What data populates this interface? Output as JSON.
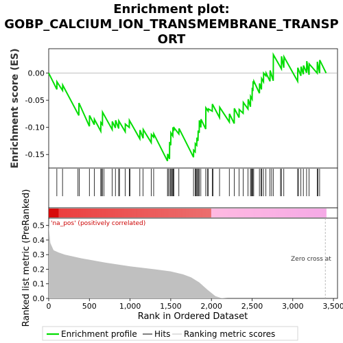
{
  "chart_data": {
    "type": "line",
    "title_lines": [
      "Enrichment plot:",
      "GOBP_CALCIUM_ION_TRANSMEMBRANE_TRANSP",
      "ORT"
    ],
    "xlabel": "Rank in Ordered Dataset",
    "ylabel_top": "Enrichment score (ES)",
    "ylabel_bottom": "Ranked list metric (PreRanked)",
    "xlim": [
      0,
      3550
    ],
    "x_ticks": [
      0,
      500,
      1000,
      1500,
      2000,
      2500,
      3000,
      3500
    ],
    "x_tick_labels": [
      "0",
      "500",
      "1,000",
      "1,500",
      "2,000",
      "2,500",
      "3,000",
      "3,500"
    ],
    "es_ylim": [
      -0.175,
      0.045
    ],
    "es_ticks": [
      0.0,
      -0.05,
      -0.1,
      -0.15
    ],
    "es_tick_labels": [
      "0.00",
      "-0.05",
      "-0.10",
      "-0.15"
    ],
    "metric_ylim": [
      0,
      0.55
    ],
    "metric_ticks": [
      0.0,
      0.1,
      0.2,
      0.3,
      0.4,
      0.5
    ],
    "metric_tick_labels": [
      "0.0",
      "0.1",
      "0.2",
      "0.3",
      "0.4",
      "0.5"
    ],
    "colors": {
      "es_line": "#00dd00",
      "hits": "#000000",
      "metric_fill": "#c0c0c0",
      "zero_cross": "#aaaaaa",
      "pos_label": "#cc0000"
    },
    "series": [
      {
        "name": "Enrichment profile",
        "x": [
          0,
          100,
          101,
          170,
          172,
          370,
          372,
          500,
          502,
          560,
          562,
          640,
          642,
          660,
          662,
          780,
          782,
          820,
          822,
          860,
          862,
          940,
          942,
          990,
          992,
          1120,
          1122,
          1160,
          1162,
          1260,
          1262,
          1290,
          1292,
          1460,
          1462,
          1485,
          1487,
          1500,
          1502,
          1525,
          1527,
          1540,
          1542,
          1600,
          1602,
          1780,
          1782,
          1800,
          1802,
          1820,
          1822,
          1835,
          1837,
          1850,
          1852,
          1870,
          1872,
          1930,
          1932,
          1960,
          1962,
          2010,
          2012,
          2100,
          2102,
          2220,
          2222,
          2280,
          2282,
          2340,
          2342,
          2390,
          2392,
          2450,
          2452,
          2480,
          2482,
          2500,
          2502,
          2510,
          2512,
          2520,
          2522,
          2590,
          2592,
          2615,
          2617,
          2640,
          2642,
          2670,
          2672,
          2720,
          2722,
          2760,
          2762,
          2860,
          2862,
          2890,
          2892,
          3060,
          3062,
          3100,
          3102,
          3130,
          3132,
          3170,
          3172,
          3200,
          3202,
          3300,
          3302,
          3330,
          3332,
          3410
        ],
        "y": [
          0.0,
          -0.03,
          -0.016,
          -0.032,
          -0.022,
          -0.078,
          -0.055,
          -0.098,
          -0.078,
          -0.095,
          -0.085,
          -0.107,
          -0.091,
          -0.095,
          -0.072,
          -0.104,
          -0.089,
          -0.101,
          -0.087,
          -0.102,
          -0.088,
          -0.108,
          -0.094,
          -0.1,
          -0.087,
          -0.121,
          -0.105,
          -0.12,
          -0.104,
          -0.128,
          -0.113,
          -0.118,
          -0.112,
          -0.162,
          -0.149,
          -0.158,
          -0.127,
          -0.133,
          -0.11,
          -0.116,
          -0.1,
          -0.104,
          -0.101,
          -0.112,
          -0.102,
          -0.155,
          -0.142,
          -0.145,
          -0.13,
          -0.133,
          -0.119,
          -0.125,
          -0.106,
          -0.11,
          -0.087,
          -0.1,
          -0.085,
          -0.103,
          -0.064,
          -0.07,
          -0.066,
          -0.07,
          -0.057,
          -0.082,
          -0.063,
          -0.09,
          -0.075,
          -0.093,
          -0.065,
          -0.082,
          -0.067,
          -0.074,
          -0.054,
          -0.066,
          -0.048,
          -0.062,
          -0.043,
          -0.048,
          -0.027,
          -0.033,
          -0.017,
          -0.018,
          -0.015,
          -0.037,
          -0.019,
          -0.03,
          -0.01,
          -0.016,
          0.0,
          -0.005,
          0.0,
          -0.015,
          0.005,
          -0.014,
          0.034,
          0.008,
          0.031,
          0.01,
          0.03,
          -0.015,
          0.01,
          -0.005,
          0.012,
          -0.002,
          0.014,
          0.001,
          0.022,
          -0.003,
          0.017,
          0.0,
          0.021,
          0.0,
          0.024,
          0.0
        ]
      }
    ],
    "hits": [
      100,
      170,
      360,
      375,
      500,
      560,
      640,
      650,
      660,
      680,
      780,
      820,
      860,
      870,
      940,
      990,
      1000,
      1120,
      1160,
      1260,
      1290,
      1460,
      1470,
      1490,
      1500,
      1510,
      1520,
      1530,
      1540,
      1600,
      1780,
      1800,
      1810,
      1820,
      1830,
      1840,
      1850,
      1870,
      1930,
      1950,
      1960,
      2010,
      2020,
      2100,
      2220,
      2280,
      2340,
      2390,
      2450,
      2480,
      2490,
      2500,
      2510,
      2520,
      2590,
      2610,
      2620,
      2640,
      2670,
      2720,
      2740,
      2760,
      2850,
      2860,
      2890,
      3060,
      3070,
      3100,
      3130,
      3170,
      3200,
      3300,
      3310,
      3330
    ],
    "metric_profile": {
      "x": [
        0,
        20,
        60,
        120,
        200,
        400,
        700,
        1000,
        1300,
        1500,
        1650,
        1750,
        1850,
        1950,
        2050,
        2120,
        2200,
        2400,
        3000,
        3400
      ],
      "y": [
        0.5,
        0.38,
        0.33,
        0.315,
        0.3,
        0.275,
        0.245,
        0.22,
        0.2,
        0.185,
        0.165,
        0.145,
        0.11,
        0.06,
        0.015,
        0.003,
        0.0,
        0.0,
        0.0,
        0.0
      ]
    },
    "heatmap_split": 1990,
    "heatmap_end": 3410,
    "pos_label": "'na_pos' (positively correlated)",
    "zero_cross_label": "Zero cross at",
    "zero_cross_x": 3400,
    "legend": [
      "Enrichment profile",
      "Hits",
      "Ranking metric scores"
    ]
  }
}
